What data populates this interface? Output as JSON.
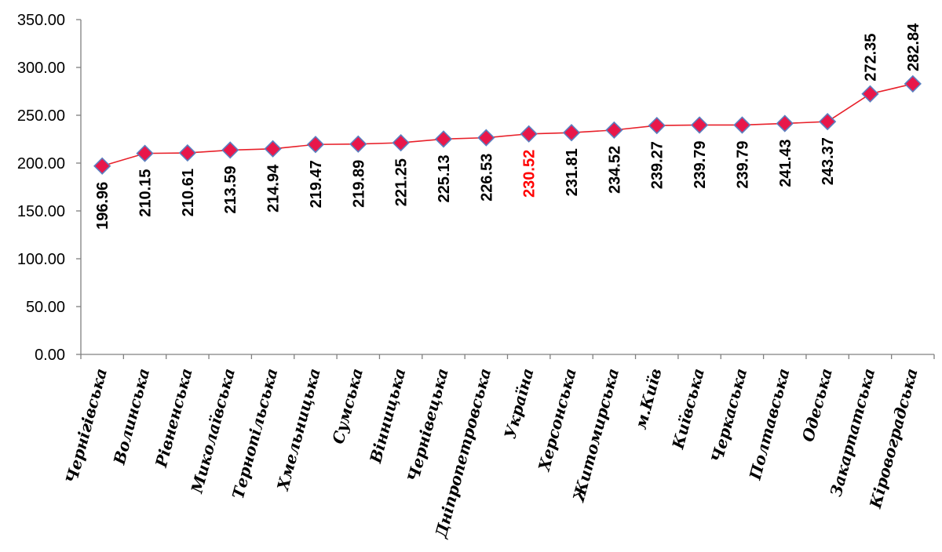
{
  "chart_data": {
    "type": "line",
    "title": "",
    "xlabel": "",
    "ylabel": "",
    "ylim": [
      0,
      350
    ],
    "yticks": [
      "0.00",
      "50.00",
      "100.00",
      "150.00",
      "200.00",
      "250.00",
      "300.00",
      "350.00"
    ],
    "grid": false,
    "legend": "none",
    "categories": [
      "Чернігівська",
      "Волинська",
      "Рівненська",
      "Миколаївська",
      "Тернопільська",
      "Хмельницька",
      "Сумська",
      "Вінницька",
      "Чернівецька",
      "Дніпропетровська",
      "Україна",
      "Херсонська",
      "Житомирська",
      "м.Київ",
      "Київська",
      "Черкаська",
      "Полтавська",
      "Одеська",
      "Закарпатська",
      "Кіровоградська"
    ],
    "values": [
      196.96,
      210.15,
      210.61,
      213.59,
      214.94,
      219.47,
      219.89,
      221.25,
      225.13,
      226.53,
      230.52,
      231.81,
      234.52,
      239.27,
      239.79,
      239.79,
      241.43,
      243.37,
      272.35,
      282.84
    ],
    "value_labels": [
      "196.96",
      "210.15",
      "210.61",
      "213.59",
      "214.94",
      "219.47",
      "219.89",
      "221.25",
      "225.13",
      "226.53",
      "230.52",
      "231.81",
      "234.52",
      "239.27",
      "239.79",
      "239.79",
      "241.43",
      "243.37",
      "272.35",
      "282.84"
    ],
    "highlight_category": "Україна",
    "colors": {
      "line": "#e8202a",
      "marker_fill": "#e8174a",
      "marker_stroke": "#5b7fc0",
      "label": "#000000",
      "highlight_label": "#ff0000",
      "axis": "#808080"
    }
  }
}
